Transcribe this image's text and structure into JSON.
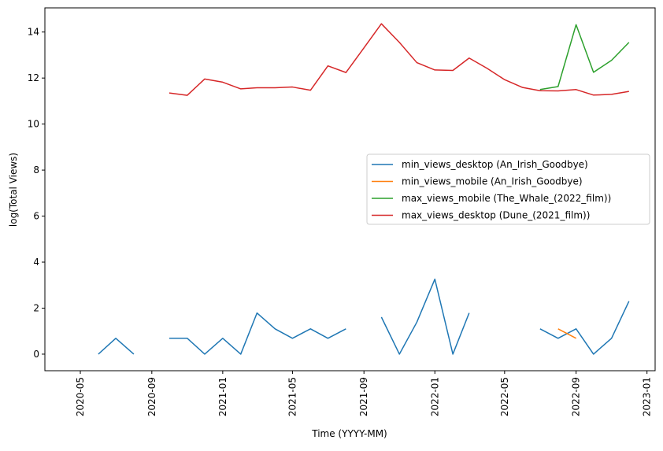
{
  "chart_data": {
    "type": "line",
    "title": "",
    "xlabel": "Time (YYYY-MM)",
    "ylabel": "log(Total Views)",
    "x_range": [
      "2020-03-01",
      "2023-01-15"
    ],
    "ylim": [
      -0.72,
      15.05
    ],
    "x_ticks": [
      "2020-05",
      "2020-09",
      "2021-01",
      "2021-05",
      "2021-09",
      "2022-01",
      "2022-05",
      "2022-09",
      "2023-01"
    ],
    "y_ticks": [
      0,
      2,
      4,
      6,
      8,
      10,
      12,
      14
    ],
    "grid": false,
    "legend_position": "center-right",
    "series": [
      {
        "name": "min_views_desktop (An_Irish_Goodbye)",
        "color": "#1f77b4",
        "x": [
          "2020-06",
          "2020-07",
          "2020-08",
          "2020-09",
          "2020-10",
          "2020-11",
          "2020-12",
          "2021-01",
          "2021-02",
          "2021-03",
          "2021-04",
          "2021-05",
          "2021-06",
          "2021-07",
          "2021-08",
          "2021-09",
          "2021-10",
          "2021-11",
          "2021-12",
          "2022-01",
          "2022-02",
          "2022-03",
          "2022-04",
          "2022-05",
          "2022-06",
          "2022-07",
          "2022-08",
          "2022-09",
          "2022-10",
          "2022-11",
          "2022-12"
        ],
        "values": [
          0,
          0.69,
          0,
          null,
          0.69,
          0.69,
          0,
          0.69,
          0,
          1.79,
          1.1,
          0.69,
          1.1,
          0.69,
          1.1,
          null,
          1.61,
          0,
          1.39,
          3.26,
          0,
          1.79,
          null,
          null,
          null,
          1.1,
          0.69,
          1.1,
          0,
          0.69,
          2.3
        ]
      },
      {
        "name": "min_views_mobile (An_Irish_Goodbye)",
        "color": "#ff7f0e",
        "x": [
          "2022-08",
          "2022-09"
        ],
        "values": [
          1.1,
          0.69
        ]
      },
      {
        "name": "max_views_mobile (The_Whale_(2022_film))",
        "color": "#2ca02c",
        "x": [
          "2022-07",
          "2022-08",
          "2022-09",
          "2022-10",
          "2022-11",
          "2022-12"
        ],
        "values": [
          11.5,
          11.63,
          14.32,
          12.25,
          12.77,
          13.55
        ]
      },
      {
        "name": "max_views_desktop (Dune_(2021_film))",
        "color": "#d62728",
        "x": [
          "2020-10",
          "2020-11",
          "2020-12",
          "2021-01",
          "2021-02",
          "2021-03",
          "2021-04",
          "2021-05",
          "2021-06",
          "2021-07",
          "2021-08",
          "2021-09",
          "2021-10",
          "2021-11",
          "2021-12",
          "2022-01",
          "2022-02",
          "2022-03",
          "2022-04",
          "2022-05",
          "2022-06",
          "2022-07",
          "2022-08",
          "2022-09",
          "2022-10",
          "2022-11",
          "2022-12"
        ],
        "values": [
          11.35,
          11.25,
          11.96,
          11.82,
          11.53,
          11.58,
          11.58,
          11.61,
          11.47,
          12.53,
          12.24,
          13.31,
          14.36,
          13.55,
          12.67,
          12.35,
          12.33,
          12.87,
          12.42,
          11.93,
          11.59,
          11.45,
          11.44,
          11.5,
          11.26,
          11.29,
          11.42
        ]
      }
    ]
  }
}
